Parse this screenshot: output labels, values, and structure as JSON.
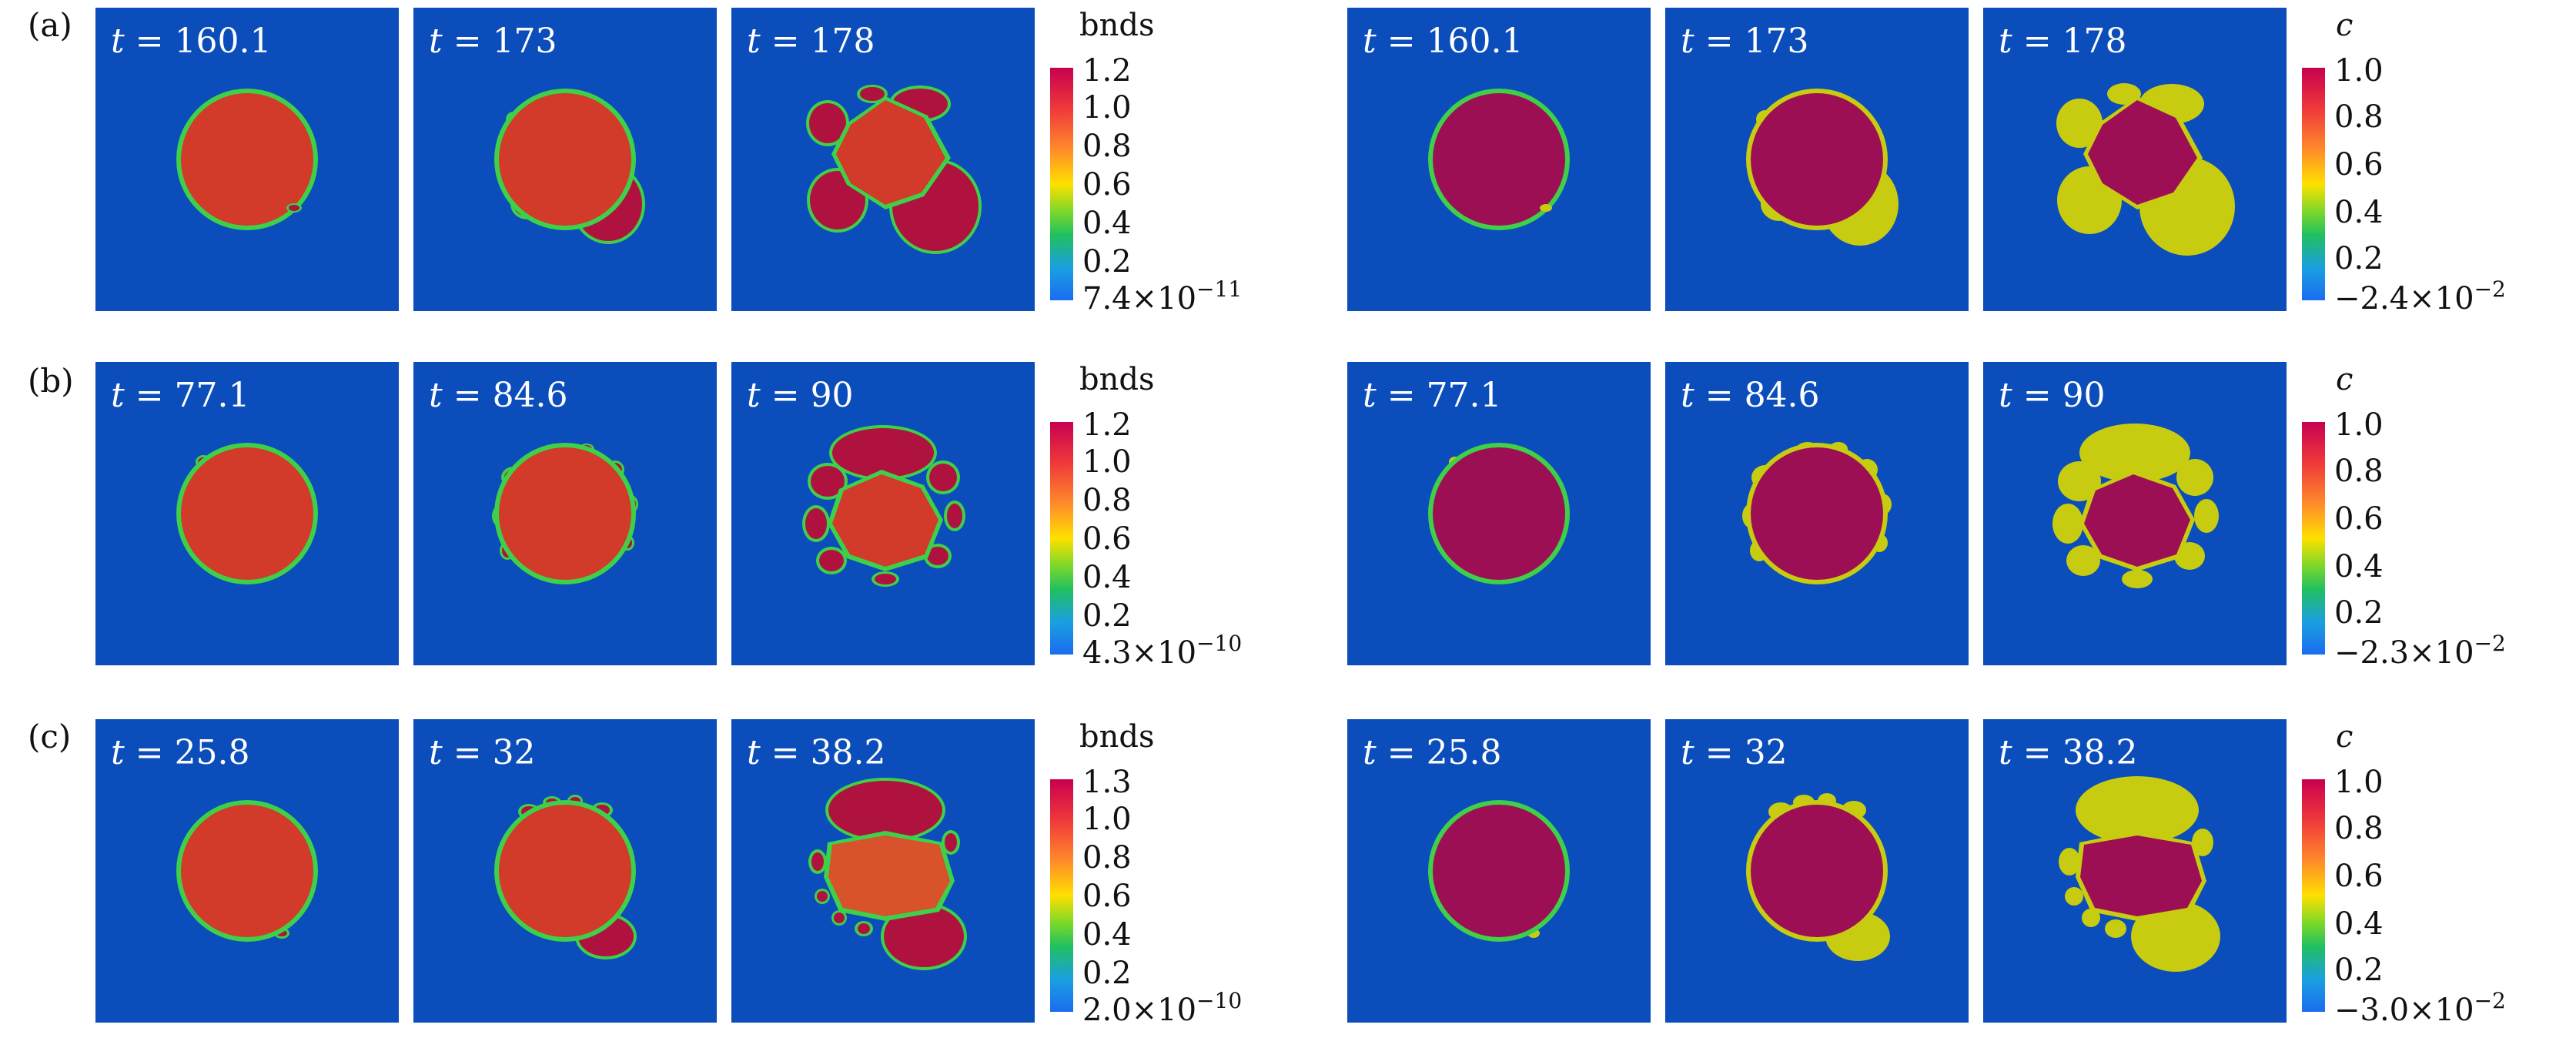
{
  "rows": [
    {
      "label": "(a)",
      "bnds_times": [
        "160.1",
        "173",
        "178"
      ],
      "c_times": [
        "160.1",
        "173",
        "178"
      ],
      "bnds_colorbar": {
        "title": "bnds",
        "max": "1.2",
        "ticks": [
          "1.0",
          "0.8",
          "0.6",
          "0.4",
          "0.2"
        ],
        "min_mantissa": "7.4",
        "min_times": "×",
        "min_base": "10",
        "min_exp": "−11"
      },
      "c_colorbar": {
        "title": "c",
        "max": "1.0",
        "ticks": [
          "0.8",
          "0.6",
          "0.4",
          "0.2"
        ],
        "min_mantissa": "−2.4",
        "min_times": "×",
        "min_base": "10",
        "min_exp": "−2"
      }
    },
    {
      "label": "(b)",
      "bnds_times": [
        "77.1",
        "84.6",
        "90"
      ],
      "c_times": [
        "77.1",
        "84.6",
        "90"
      ],
      "bnds_colorbar": {
        "title": "bnds",
        "max": "1.2",
        "ticks": [
          "1.0",
          "0.8",
          "0.6",
          "0.4",
          "0.2"
        ],
        "min_mantissa": "4.3",
        "min_times": "×",
        "min_base": "10",
        "min_exp": "−10"
      },
      "c_colorbar": {
        "title": "c",
        "max": "1.0",
        "ticks": [
          "0.8",
          "0.6",
          "0.4",
          "0.2"
        ],
        "min_mantissa": "−2.3",
        "min_times": "×",
        "min_base": "10",
        "min_exp": "−2"
      }
    },
    {
      "label": "(c)",
      "bnds_times": [
        "25.8",
        "32",
        "38.2"
      ],
      "c_times": [
        "25.8",
        "32",
        "38.2"
      ],
      "bnds_colorbar": {
        "title": "bnds",
        "max": "1.3",
        "ticks": [
          "1.0",
          "0.8",
          "0.6",
          "0.4",
          "0.2"
        ],
        "min_mantissa": "2.0",
        "min_times": "×",
        "min_base": "10",
        "min_exp": "−10"
      },
      "c_colorbar": {
        "title": "c",
        "max": "1.0",
        "ticks": [
          "0.8",
          "0.6",
          "0.4",
          "0.2"
        ],
        "min_mantissa": "−3.0",
        "min_times": "×",
        "min_base": "10",
        "min_exp": "−2"
      }
    }
  ],
  "time_symbol": "t",
  "equals": "=",
  "colors": {
    "background": "#0a4dbb",
    "bnds_fill": "#d23a2a",
    "c_fill": "#9c0f55",
    "c_shell": "#c8cc10",
    "rim": "#3fd04a"
  }
}
